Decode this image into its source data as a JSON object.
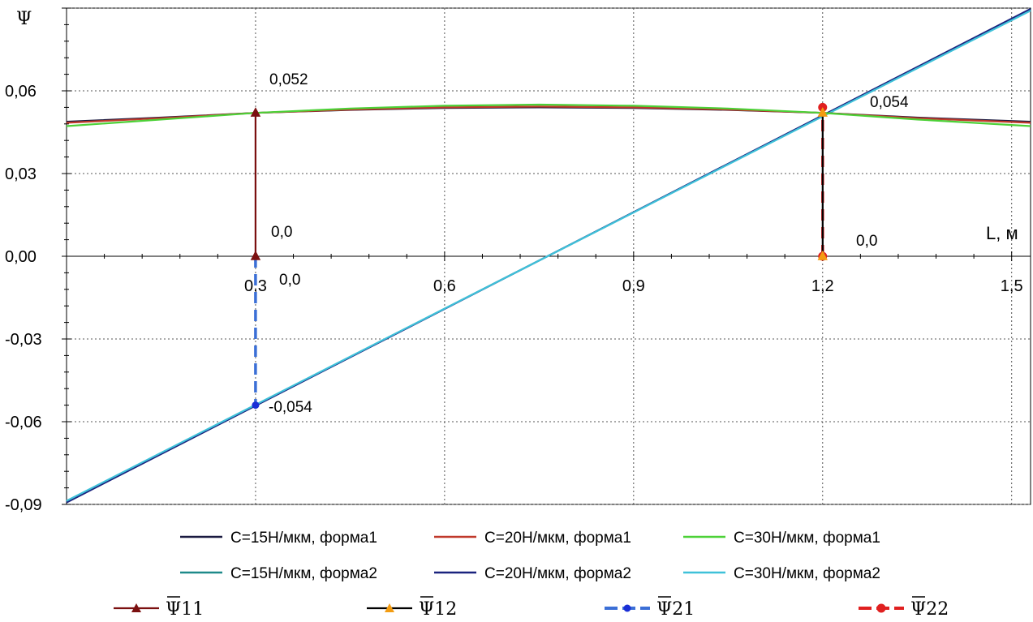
{
  "chart_data": {
    "type": "line",
    "title": "",
    "xlabel": "L, м",
    "ylabel": "Ψ",
    "xlim": [
      0.0,
      1.53
    ],
    "ylim": [
      -0.09,
      0.09
    ],
    "grid": true,
    "legend_position": "bottom",
    "x_ticks": [
      "0,3",
      "0,6",
      "0,9",
      "1,2",
      "1,5"
    ],
    "y_ticks": [
      "0,06",
      "0,03",
      "0,00",
      "-0,03",
      "-0,06",
      "-0,09"
    ],
    "series": [
      {
        "name": "C=15Н/мкм, форма1",
        "color": "#1a1a40",
        "style": "solid",
        "x": [
          0.0,
          0.15,
          0.3,
          0.45,
          0.6,
          0.75,
          0.9,
          1.05,
          1.2,
          1.35,
          1.53
        ],
        "y": [
          0.0488,
          0.0503,
          0.052,
          0.0531,
          0.0538,
          0.054,
          0.0538,
          0.0531,
          0.052,
          0.0503,
          0.0488
        ]
      },
      {
        "name": "C=20Н/мкм, форма1",
        "color": "#c0392b",
        "style": "solid",
        "x": [
          0.0,
          0.15,
          0.3,
          0.45,
          0.6,
          0.75,
          0.9,
          1.05,
          1.2,
          1.35,
          1.53
        ],
        "y": [
          0.0484,
          0.0501,
          0.052,
          0.0532,
          0.054,
          0.0543,
          0.054,
          0.0532,
          0.052,
          0.0501,
          0.0484
        ]
      },
      {
        "name": "C=30Н/мкм, форма1",
        "color": "#4cd137",
        "style": "solid",
        "x": [
          0.0,
          0.15,
          0.3,
          0.45,
          0.6,
          0.75,
          0.9,
          1.05,
          1.2,
          1.35,
          1.53
        ],
        "y": [
          0.0472,
          0.0496,
          0.052,
          0.0536,
          0.0546,
          0.055,
          0.0546,
          0.0536,
          0.052,
          0.0496,
          0.0472
        ]
      },
      {
        "name": "C=15Н/мкм, форма2",
        "color": "#1e8a8a",
        "style": "solid",
        "x": [
          0.0,
          1.53
        ],
        "y": [
          -0.089,
          0.0894
        ]
      },
      {
        "name": "C=20Н/мкм, форма2",
        "color": "#1a237e",
        "style": "solid",
        "x": [
          0.0,
          1.53
        ],
        "y": [
          -0.0893,
          0.0897
        ]
      },
      {
        "name": "C=30Н/мкм, форма2",
        "color": "#3fc1d9",
        "style": "solid",
        "x": [
          0.0,
          1.53
        ],
        "y": [
          -0.0887,
          0.0891
        ]
      },
      {
        "name": "Ψ11",
        "color": "#7b1010",
        "style": "solid",
        "marker": "triangle",
        "x": [
          0.3,
          0.3
        ],
        "y": [
          0.0,
          0.052
        ]
      },
      {
        "name": "Ψ12",
        "color": "#000000",
        "style": "solid",
        "marker": "triangle",
        "marker_color": "#f39c12",
        "x": [
          1.2,
          1.2
        ],
        "y": [
          0.0,
          0.052
        ]
      },
      {
        "name": "Ψ21",
        "color": "#3b6fd6",
        "style": "dashed",
        "marker": "circle",
        "marker_color": "#1a2fd6",
        "x": [
          0.3,
          0.3
        ],
        "y": [
          0.0,
          -0.054
        ]
      },
      {
        "name": "Ψ22",
        "color": "#e02020",
        "style": "dashed",
        "marker": "circle",
        "x": [
          1.2,
          1.2
        ],
        "y": [
          0.0,
          0.054
        ]
      }
    ],
    "annotations": [
      {
        "text": "0,052",
        "x": 0.3,
        "y": 0.052
      },
      {
        "text": "0,0",
        "x": 0.3,
        "y": 0.0
      },
      {
        "text": "0,0",
        "x": 0.3,
        "y": 0.0
      },
      {
        "text": "-0,054",
        "x": 0.3,
        "y": -0.054
      },
      {
        "text": "0,054",
        "x": 1.2,
        "y": 0.054
      },
      {
        "text": "0,0",
        "x": 1.2,
        "y": 0.0
      }
    ],
    "legend_rows": [
      [
        "C=15Н/мкм, форма1",
        "C=20Н/мкм, форма1",
        "C=30Н/мкм, форма1"
      ],
      [
        "C=15Н/мкм, форма2",
        "C=20Н/мкм, форма2",
        "C=30Н/мкм, форма2"
      ],
      [
        "Ψ11",
        "Ψ12",
        "Ψ21",
        "Ψ22"
      ]
    ]
  }
}
